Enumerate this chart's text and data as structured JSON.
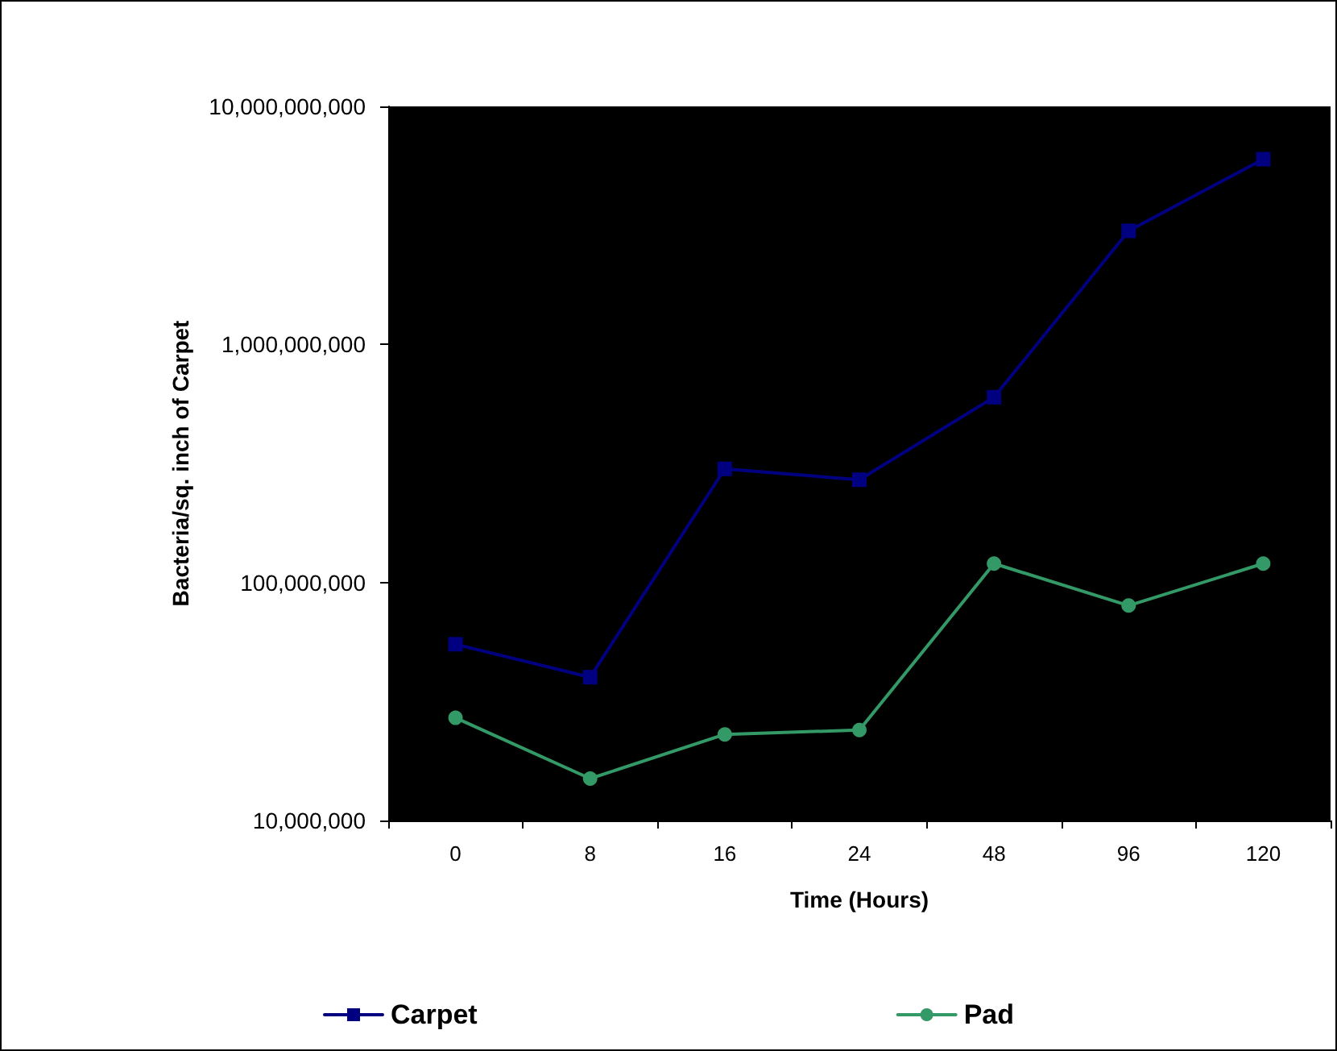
{
  "chart_data": {
    "type": "line",
    "xlabel": "Time (Hours)",
    "ylabel": "Bacteria/sq. inch of Carpet",
    "categories": [
      "0",
      "8",
      "16",
      "24",
      "48",
      "96",
      "120"
    ],
    "series": [
      {
        "name": "Carpet",
        "color": "#000080",
        "marker": "square",
        "values": [
          55000000,
          40000000,
          300000000,
          270000000,
          600000000,
          3000000000,
          6000000000
        ]
      },
      {
        "name": "Pad",
        "color": "#339966",
        "marker": "circle",
        "values": [
          27000000,
          15000000,
          23000000,
          24000000,
          120000000,
          80000000,
          120000000
        ]
      }
    ],
    "log": "y",
    "ylim": [
      10000000,
      10000000000
    ],
    "yticks": [
      {
        "value": 10000000,
        "label": "10,000,000"
      },
      {
        "value": 100000000,
        "label": "100,000,000"
      },
      {
        "value": 1000000000,
        "label": "1,000,000,000"
      },
      {
        "value": 10000000000,
        "label": "10,000,000,000"
      }
    ],
    "grid": false,
    "legend": "bottom",
    "line_style": "solid"
  }
}
